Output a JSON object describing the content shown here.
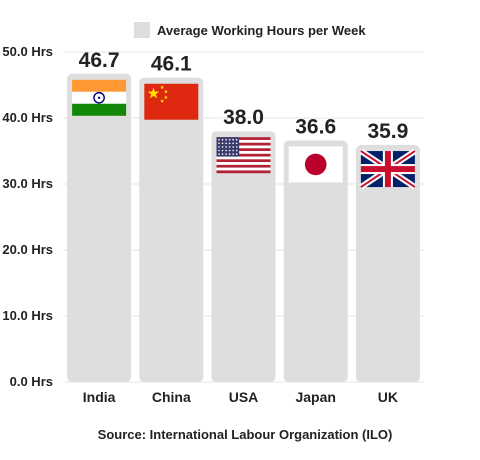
{
  "chart_data": {
    "type": "bar",
    "legend": "Average Working Hours per Week",
    "categories": [
      "India",
      "China",
      "USA",
      "Japan",
      "UK"
    ],
    "values": [
      46.7,
      46.1,
      38.0,
      36.6,
      35.9
    ],
    "value_labels": [
      "46.7",
      "46.1",
      "38.0",
      "36.6",
      "35.9"
    ],
    "flags": [
      "india-flag",
      "china-flag",
      "usa-flag",
      "japan-flag",
      "uk-flag"
    ],
    "ylim": [
      0,
      50
    ],
    "yticks": [
      "0.0 Hrs",
      "10.0 Hrs",
      "20.0 Hrs",
      "30.0 Hrs",
      "40.0 Hrs",
      "50.0 Hrs"
    ],
    "grid": true,
    "legend_position": "top",
    "bar_color": "#dedede",
    "source": "Source: International Labour Organization (ILO)"
  }
}
